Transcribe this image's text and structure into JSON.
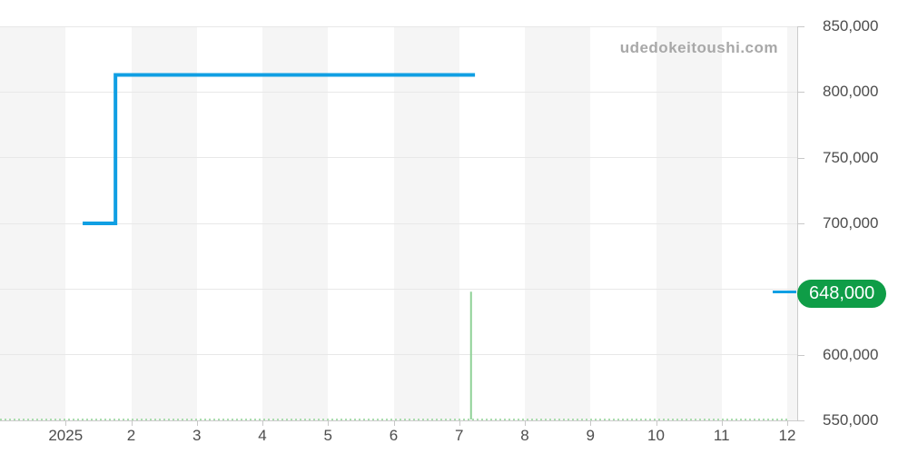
{
  "watermark": "udedokeitoushi.com",
  "badge": {
    "label": "648,000",
    "bg_color": "#0f9d47",
    "text_color": "#ffffff"
  },
  "colors": {
    "stripe": "#f5f5f5",
    "gridline": "#e8e8e8",
    "axis_line": "#cccccc",
    "tick": "#c8c8c8",
    "tick_label": "#4d4d4d",
    "watermark": "#a8a8a8",
    "line_blue": "#109fe3",
    "spike_green": "#8ed196",
    "baseline_green": "#abdcaf"
  },
  "chart_data": {
    "type": "line",
    "title": "",
    "xlabel": "",
    "ylabel": "",
    "x_axis": {
      "unit": "month (2025)",
      "tick_months": [
        1,
        2,
        3,
        4,
        5,
        6,
        7,
        8,
        9,
        10,
        11,
        12
      ],
      "tick_labels": [
        "2025",
        "2",
        "3",
        "4",
        "5",
        "6",
        "7",
        "8",
        "9",
        "10",
        "11",
        "12"
      ],
      "range_months": [
        0,
        12.15
      ],
      "band_stripes": true
    },
    "y_axis": {
      "unit": "JPY",
      "tick_values": [
        550000,
        600000,
        650000,
        700000,
        750000,
        800000,
        850000
      ],
      "tick_labels": [
        "550,000",
        "600,000",
        "650,000",
        "700,000",
        "750,000",
        "800,000",
        "850,000"
      ],
      "range": [
        550000,
        850000
      ],
      "position": "right",
      "grid": true
    },
    "series": [
      {
        "name": "price-line-blue",
        "color": "#109fe3",
        "style": "solid",
        "points": [
          [
            1.26,
            700000
          ],
          [
            1.76,
            700000
          ],
          [
            1.76,
            813000
          ],
          [
            7.24,
            813000
          ]
        ]
      },
      {
        "name": "price-spike-green",
        "color": "#8ed196",
        "style": "solid",
        "points": [
          [
            7.18,
            550700
          ],
          [
            7.18,
            648000
          ]
        ]
      },
      {
        "name": "price-baseline-green",
        "color": "#abdcaf",
        "style": "dotted",
        "points": [
          [
            0,
            550700
          ],
          [
            12,
            550700
          ]
        ]
      }
    ],
    "current_value": 648000,
    "current_value_label": "648,000",
    "legend": "none"
  }
}
